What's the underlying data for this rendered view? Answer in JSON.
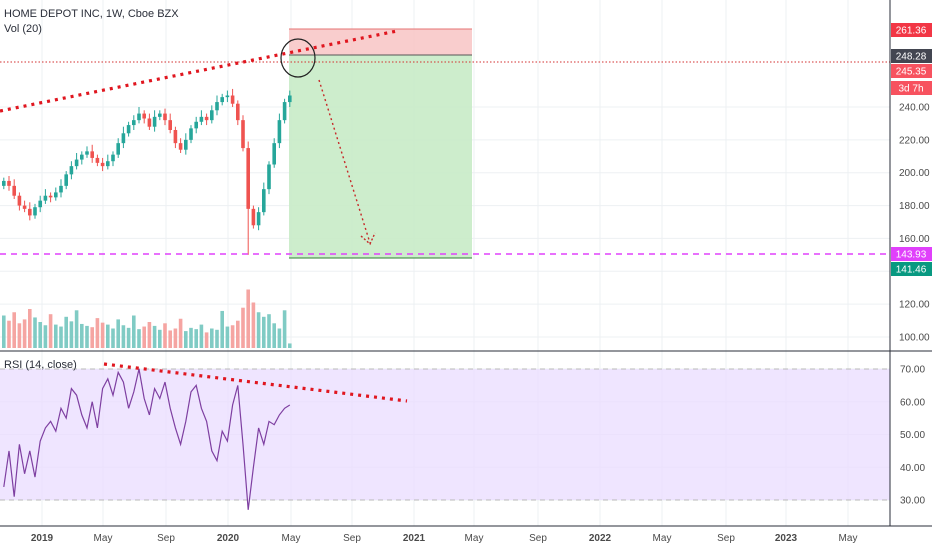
{
  "chart_data": [
    {
      "type": "candlestick",
      "title": "HOME DEPOT INC, 1W, Cboe BZX",
      "volume_label": "Vol (20)",
      "y_ticks": [
        100,
        120,
        140,
        160,
        180,
        200,
        220,
        240
      ],
      "price_tags": [
        {
          "text": "261.36",
          "value": 261.36,
          "color": "#f23645"
        },
        {
          "text": "248.28",
          "value": 248.28,
          "color": "#434651"
        },
        {
          "text": "245.35",
          "value": 245.35,
          "color": "#f7525f"
        },
        {
          "text": "3d 7h",
          "value": 238.5,
          "color": "#f7525f"
        },
        {
          "text": "143.93",
          "value": 143.93,
          "color": "#e040fb"
        },
        {
          "text": "141.46",
          "value": 141.46,
          "color": "#089981"
        }
      ],
      "levels": {
        "stop": 261.36,
        "entry": 248.28,
        "target": 141.46,
        "support": 143.93,
        "last": 245.35
      },
      "weekly_closes": [
        195,
        192,
        186,
        180,
        178,
        174,
        179,
        183,
        186,
        185,
        188,
        192,
        199,
        204,
        208,
        211,
        213,
        209,
        206,
        204,
        207,
        211,
        218,
        224,
        229,
        232,
        236,
        233,
        228,
        234,
        236,
        232,
        226,
        218,
        214,
        220,
        227,
        231,
        234,
        232,
        238,
        243,
        246,
        247,
        242,
        232,
        215,
        178,
        168,
        176,
        190,
        205,
        218,
        232,
        243,
        247
      ],
      "volume": [
        50,
        42,
        55,
        38,
        44,
        60,
        47,
        40,
        35,
        52,
        36,
        33,
        48,
        41,
        58,
        37,
        34,
        32,
        46,
        39,
        36,
        30,
        44,
        35,
        31,
        50,
        29,
        33,
        40,
        34,
        28,
        38,
        27,
        30,
        45,
        26,
        31,
        29,
        36,
        24,
        30,
        28,
        57,
        33,
        35,
        42,
        62,
        90,
        70,
        55,
        48,
        52,
        38,
        30,
        58,
        7
      ],
      "x_labels": [
        "2019",
        "May",
        "Sep",
        "2020",
        "May",
        "Sep",
        "2021",
        "May",
        "Sep",
        "2022",
        "May",
        "Sep",
        "2023",
        "May"
      ]
    },
    {
      "type": "line",
      "title": "RSI (14, close)",
      "y_ticks": [
        30,
        40,
        50,
        60,
        70
      ],
      "band": [
        30,
        70
      ],
      "values": [
        34,
        45,
        31,
        47,
        38,
        45,
        37,
        48,
        52,
        54,
        51,
        58,
        55,
        64,
        62,
        56,
        52,
        60,
        52,
        64,
        67,
        62,
        69,
        66,
        58,
        63,
        70,
        61,
        56,
        64,
        61,
        66,
        58,
        52,
        47,
        54,
        63,
        65,
        58,
        54,
        45,
        42,
        51,
        48,
        59,
        65,
        47,
        27,
        40,
        52,
        47,
        54,
        53,
        56,
        58,
        59
      ]
    }
  ]
}
